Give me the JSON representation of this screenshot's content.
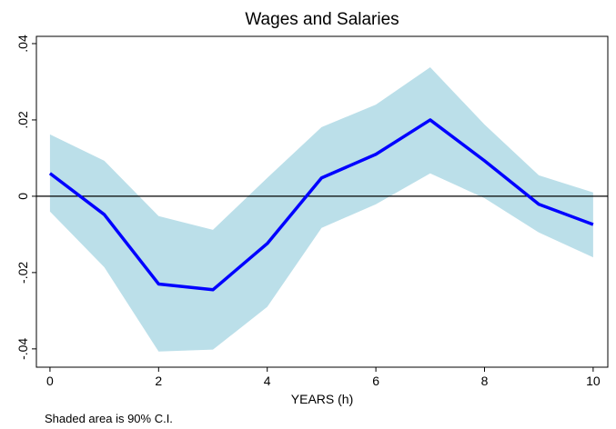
{
  "chart_data": {
    "type": "line",
    "title": "Wages and Salaries",
    "x_label": "YEARS (h)",
    "note": "Shaded area is 90% C.I.",
    "x": [
      0,
      1,
      2,
      3,
      4,
      5,
      6,
      7,
      8,
      9,
      10
    ],
    "values": [
      0.006,
      -0.0048,
      -0.023,
      -0.0245,
      -0.0124,
      0.0048,
      0.011,
      0.02,
      0.0093,
      -0.0021,
      -0.0074
    ],
    "ci_upper": [
      0.0162,
      0.0093,
      -0.0052,
      -0.0088,
      0.0048,
      0.0181,
      0.024,
      0.0338,
      0.0188,
      0.0055,
      0.001
    ],
    "ci_lower": [
      -0.004,
      -0.0186,
      -0.0407,
      -0.0402,
      -0.029,
      -0.0083,
      -0.0021,
      0.006,
      -0.0005,
      -0.0095,
      -0.016
    ],
    "color": "#0000ff",
    "ci_color": "#bbdfe9",
    "reference_line": 0,
    "xlim": [
      -0.25,
      10.27
    ],
    "ylim": [
      -0.0448,
      0.0419
    ],
    "xticks": [
      0,
      2,
      4,
      6,
      8,
      10
    ],
    "yticks": [
      {
        "value": 0.04,
        "label": ".04"
      },
      {
        "value": 0.02,
        "label": ".02"
      },
      0,
      {
        "value": -0.02,
        "label": "-.02"
      },
      {
        "value": -0.04,
        "label": "-.04"
      }
    ]
  }
}
